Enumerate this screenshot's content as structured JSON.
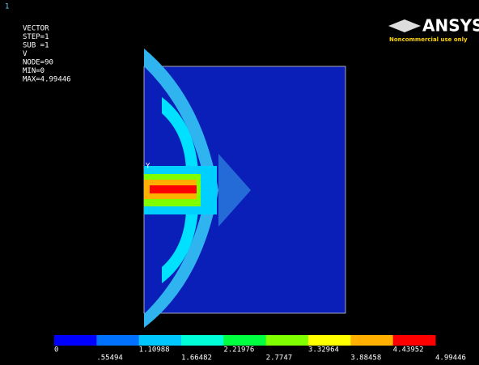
{
  "window": {
    "number": "1"
  },
  "info": {
    "lines": [
      "VECTOR",
      "STEP=1",
      "SUB =1",
      "V",
      "NODE=90",
      "MIN=0",
      "MAX=4.99446"
    ]
  },
  "logo": {
    "brand": "ANSYS",
    "note": "Noncommercial use only"
  },
  "plot": {
    "axis_label": "Y"
  },
  "legend": {
    "labels": [
      "0",
      ".55494",
      "1.10988",
      "1.66482",
      "2.21976",
      "2.7747",
      "3.32964",
      "3.88458",
      "4.43952",
      "4.99446"
    ],
    "colors": [
      "#0000ff",
      "#0070ff",
      "#00c8ff",
      "#00ffd8",
      "#00ff40",
      "#80ff00",
      "#ffff00",
      "#ffb000",
      "#ff0000"
    ]
  }
}
